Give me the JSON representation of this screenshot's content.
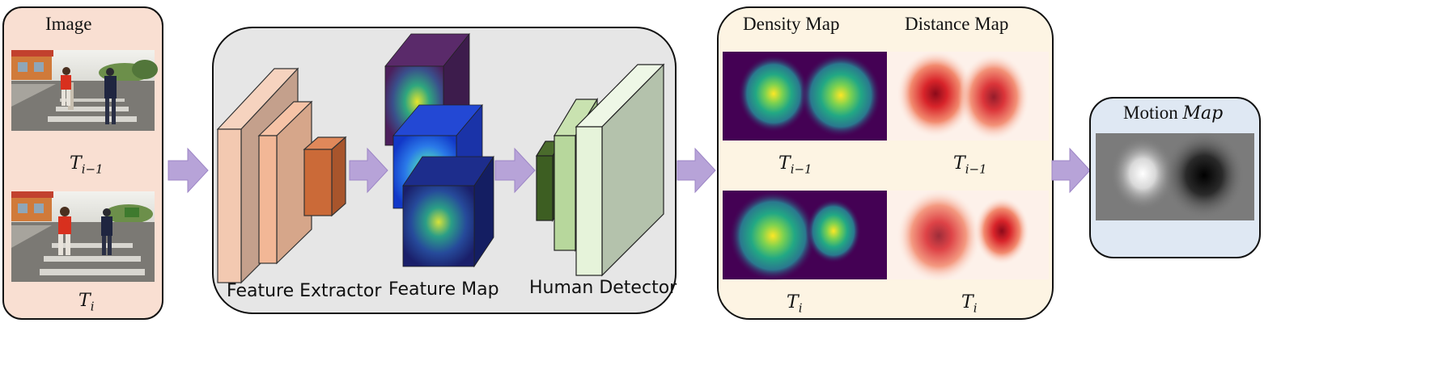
{
  "image_panel": {
    "title": "Image",
    "frame_prev_label": "T",
    "frame_prev_sub": "i−1",
    "frame_curr_label": "T",
    "frame_curr_sub": "i"
  },
  "network_panel": {
    "feature_extractor_label": "Feature Extractor",
    "feature_map_label": "Feature Map",
    "human_detector_label": "Human Detector"
  },
  "maps_panel": {
    "density_title": "Density Map",
    "distance_title": "Distance Map",
    "density_prev_label": "T",
    "density_prev_sub": "i−1",
    "distance_prev_label": "T",
    "distance_prev_sub": "i−1",
    "density_curr_label": "T",
    "density_curr_sub": "i",
    "distance_curr_label": "T",
    "distance_curr_sub": "i"
  },
  "motion_panel": {
    "title_prefix": "Motion ",
    "title_italic": "Map"
  },
  "colors": {
    "image_panel_bg": "#f9dfd2",
    "network_panel_bg": "#e6e6e6",
    "maps_panel_bg": "#fdf4e3",
    "motion_panel_bg": "#dfe8f3",
    "arrow": "#b7a3d8"
  }
}
